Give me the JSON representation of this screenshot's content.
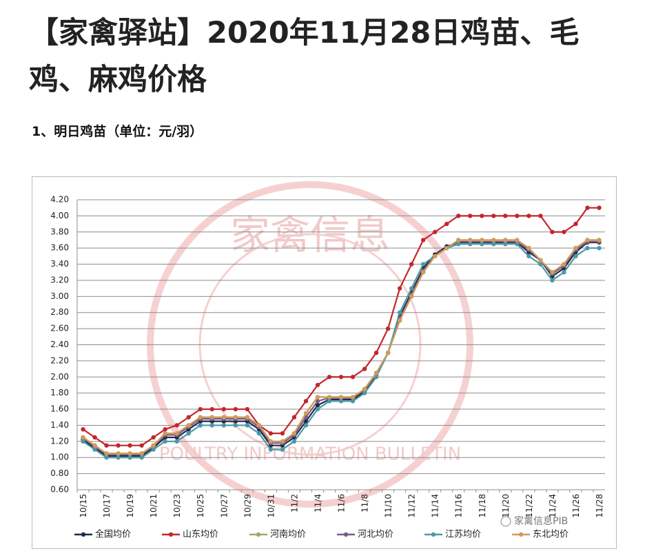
{
  "header": {
    "title": "【家禽驿站】2020年11月28日鸡苗、毛鸡、麻鸡价格",
    "subtitle": "1、明日鸡苗（单位：元/羽）"
  },
  "watermark": {
    "text": "家禽信息",
    "subtext": "POULTRY INFORMATION BULLETIN",
    "label": "家禽信息PIB"
  },
  "chart_data": {
    "type": "line",
    "categories": [
      "10/15",
      null,
      "10/17",
      null,
      "10/19",
      null,
      "10/21",
      null,
      "10/23",
      null,
      "10/25",
      null,
      "10/27",
      null,
      "10/29",
      null,
      "10/31",
      null,
      "11/2",
      null,
      "11/4",
      null,
      "11/6",
      null,
      "11/8",
      null,
      "11/10",
      null,
      "11/12",
      null,
      "11/14",
      null,
      "11/16",
      null,
      "11/18",
      null,
      "11/20",
      null,
      "11/22",
      null,
      "11/24",
      null,
      "11/26",
      null,
      "11/28"
    ],
    "ylim": [
      0.6,
      4.2
    ],
    "yticks": [
      {
        "value": 0.6,
        "label": "0.60"
      },
      {
        "value": 0.8,
        "label": "0.80"
      },
      {
        "value": 1.0,
        "label": "1.00"
      },
      {
        "value": 1.2,
        "label": "1.20"
      },
      {
        "value": 1.4,
        "label": "1.40"
      },
      {
        "value": 1.6,
        "label": "1.60"
      },
      {
        "value": 1.8,
        "label": "1.80"
      },
      {
        "value": 2.0,
        "label": "2.00"
      },
      {
        "value": 2.2,
        "label": "2.20"
      },
      {
        "value": 2.4,
        "label": "2.40"
      },
      {
        "value": 2.6,
        "label": "2.60"
      },
      {
        "value": 2.8,
        "label": "2.80"
      },
      {
        "value": 3.0,
        "label": "3.00"
      },
      {
        "value": 3.2,
        "label": "3.20"
      },
      {
        "value": 3.4,
        "label": "3.40"
      },
      {
        "value": 3.6,
        "label": "3.60"
      },
      {
        "value": 3.8,
        "label": "3.80"
      },
      {
        "value": 4.0,
        "label": "4.00"
      },
      {
        "value": 4.2,
        "label": "4.20"
      }
    ],
    "grid": true,
    "legend": "bottom",
    "series": [
      {
        "name": "全国均价",
        "color": "#1c2a4a",
        "values": [
          1.22,
          1.12,
          1.02,
          1.02,
          1.02,
          1.02,
          1.12,
          1.25,
          1.25,
          1.35,
          1.45,
          1.45,
          1.45,
          1.45,
          1.45,
          1.35,
          1.15,
          1.15,
          1.25,
          1.45,
          1.65,
          1.72,
          1.72,
          1.72,
          1.82,
          2.02,
          2.3,
          2.75,
          3.05,
          3.35,
          3.52,
          3.62,
          3.67,
          3.67,
          3.67,
          3.67,
          3.67,
          3.67,
          3.55,
          3.45,
          3.25,
          3.35,
          3.55,
          3.67,
          3.67
        ]
      },
      {
        "name": "山东均价",
        "color": "#c1272d",
        "values": [
          1.35,
          1.25,
          1.15,
          1.15,
          1.15,
          1.15,
          1.25,
          1.35,
          1.4,
          1.5,
          1.6,
          1.6,
          1.6,
          1.6,
          1.6,
          1.4,
          1.3,
          1.3,
          1.5,
          1.7,
          1.9,
          2.0,
          2.0,
          2.0,
          2.1,
          2.3,
          2.6,
          3.1,
          3.4,
          3.7,
          3.8,
          3.9,
          4.0,
          4.0,
          4.0,
          4.0,
          4.0,
          4.0,
          4.0,
          4.0,
          3.8,
          3.8,
          3.9,
          4.1,
          4.1
        ]
      },
      {
        "name": "河南均价",
        "color": "#9aab69",
        "values": [
          1.25,
          1.15,
          1.05,
          1.05,
          1.05,
          1.05,
          1.15,
          1.3,
          1.3,
          1.4,
          1.5,
          1.5,
          1.5,
          1.5,
          1.5,
          1.4,
          1.2,
          1.2,
          1.3,
          1.55,
          1.75,
          1.75,
          1.75,
          1.75,
          1.85,
          2.05,
          2.3,
          2.7,
          3.0,
          3.3,
          3.5,
          3.6,
          3.7,
          3.7,
          3.7,
          3.7,
          3.7,
          3.7,
          3.6,
          3.45,
          3.3,
          3.4,
          3.6,
          3.7,
          3.7
        ]
      },
      {
        "name": "河北均价",
        "color": "#7a5a8a",
        "values": [
          1.24,
          1.14,
          1.04,
          1.04,
          1.04,
          1.04,
          1.14,
          1.28,
          1.28,
          1.38,
          1.48,
          1.48,
          1.48,
          1.48,
          1.48,
          1.38,
          1.18,
          1.18,
          1.28,
          1.5,
          1.7,
          1.74,
          1.74,
          1.74,
          1.84,
          2.04,
          2.3,
          2.72,
          3.02,
          3.32,
          3.5,
          3.6,
          3.68,
          3.68,
          3.68,
          3.68,
          3.68,
          3.68,
          3.58,
          3.45,
          3.28,
          3.38,
          3.58,
          3.68,
          3.68
        ]
      },
      {
        "name": "江苏均价",
        "color": "#4b98a6",
        "values": [
          1.2,
          1.1,
          1.0,
          1.0,
          1.0,
          1.0,
          1.1,
          1.2,
          1.2,
          1.3,
          1.4,
          1.4,
          1.4,
          1.4,
          1.4,
          1.3,
          1.1,
          1.1,
          1.2,
          1.4,
          1.6,
          1.7,
          1.7,
          1.7,
          1.8,
          2.0,
          2.3,
          2.8,
          3.1,
          3.4,
          3.5,
          3.6,
          3.65,
          3.65,
          3.65,
          3.65,
          3.65,
          3.65,
          3.5,
          3.4,
          3.2,
          3.3,
          3.5,
          3.6,
          3.6
        ]
      },
      {
        "name": "东北均价",
        "color": "#d39a58",
        "values": [
          1.25,
          1.15,
          1.05,
          1.05,
          1.05,
          1.05,
          1.15,
          1.3,
          1.3,
          1.4,
          1.5,
          1.5,
          1.5,
          1.5,
          1.5,
          1.4,
          1.2,
          1.2,
          1.3,
          1.55,
          1.75,
          1.75,
          1.75,
          1.75,
          1.85,
          2.05,
          2.3,
          2.7,
          3.0,
          3.3,
          3.5,
          3.6,
          3.7,
          3.7,
          3.7,
          3.7,
          3.7,
          3.7,
          3.6,
          3.45,
          3.3,
          3.4,
          3.6,
          3.7,
          3.7
        ]
      }
    ]
  }
}
